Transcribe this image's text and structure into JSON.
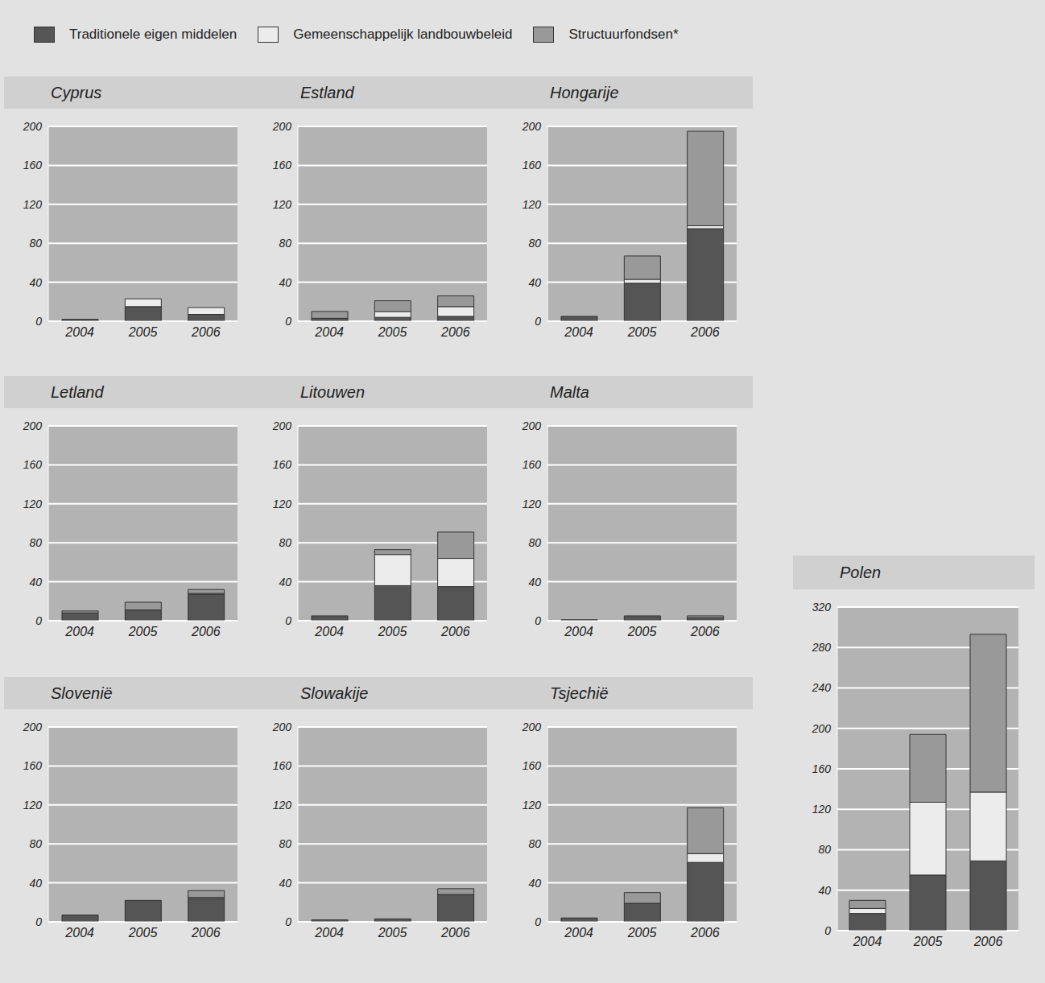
{
  "chart_data": [
    {
      "type": "bar",
      "title": "Cyprus",
      "categories": [
        "2004",
        "2005",
        "2006"
      ],
      "stacked": true,
      "grid": true,
      "legend": "top",
      "ylim": [
        0,
        200
      ],
      "yticks": [
        0,
        40,
        80,
        120,
        160,
        200
      ],
      "series": [
        {
          "name": "Traditionele eigen middelen",
          "color": "#555555",
          "values": [
            2,
            15,
            7
          ]
        },
        {
          "name": "Gemeenschappelijk landbouwbeleid",
          "color": "#ececec",
          "values": [
            0,
            8,
            7
          ]
        },
        {
          "name": "Structuurfondsen*",
          "color": "#999999",
          "values": [
            0,
            0,
            0
          ]
        }
      ]
    },
    {
      "type": "bar",
      "title": "Estland",
      "categories": [
        "2004",
        "2005",
        "2006"
      ],
      "stacked": true,
      "grid": true,
      "legend": "top",
      "ylim": [
        0,
        200
      ],
      "yticks": [
        0,
        40,
        80,
        120,
        160,
        200
      ],
      "series": [
        {
          "name": "Traditionele eigen middelen",
          "color": "#555555",
          "values": [
            3,
            4,
            5
          ]
        },
        {
          "name": "Gemeenschappelijk landbouwbeleid",
          "color": "#ececec",
          "values": [
            0,
            6,
            10
          ]
        },
        {
          "name": "Structuurfondsen*",
          "color": "#999999",
          "values": [
            7,
            11,
            11
          ]
        }
      ]
    },
    {
      "type": "bar",
      "title": "Hongarije",
      "categories": [
        "2004",
        "2005",
        "2006"
      ],
      "stacked": true,
      "grid": true,
      "legend": "top",
      "ylim": [
        0,
        200
      ],
      "yticks": [
        0,
        40,
        80,
        120,
        160,
        200
      ],
      "series": [
        {
          "name": "Traditionele eigen middelen",
          "color": "#555555",
          "values": [
            5,
            39,
            95
          ]
        },
        {
          "name": "Gemeenschappelijk landbouwbeleid",
          "color": "#ececec",
          "values": [
            0,
            4,
            3
          ]
        },
        {
          "name": "Structuurfondsen*",
          "color": "#999999",
          "values": [
            0,
            24,
            97
          ]
        }
      ]
    },
    {
      "type": "bar",
      "title": "Letland",
      "categories": [
        "2004",
        "2005",
        "2006"
      ],
      "stacked": true,
      "grid": true,
      "legend": "top",
      "ylim": [
        0,
        200
      ],
      "yticks": [
        0,
        40,
        80,
        120,
        160,
        200
      ],
      "series": [
        {
          "name": "Traditionele eigen middelen",
          "color": "#555555",
          "values": [
            8,
            11,
            27
          ]
        },
        {
          "name": "Gemeenschappelijk landbouwbeleid",
          "color": "#ececec",
          "values": [
            0,
            0,
            1
          ]
        },
        {
          "name": "Structuurfondsen*",
          "color": "#999999",
          "values": [
            2,
            8,
            4
          ]
        }
      ]
    },
    {
      "type": "bar",
      "title": "Litouwen",
      "categories": [
        "2004",
        "2005",
        "2006"
      ],
      "stacked": true,
      "grid": true,
      "legend": "top",
      "ylim": [
        0,
        200
      ],
      "yticks": [
        0,
        40,
        80,
        120,
        160,
        200
      ],
      "series": [
        {
          "name": "Traditionele eigen middelen",
          "color": "#555555",
          "values": [
            5,
            36,
            35
          ]
        },
        {
          "name": "Gemeenschappelijk landbouwbeleid",
          "color": "#ececec",
          "values": [
            0,
            32,
            29
          ]
        },
        {
          "name": "Structuurfondsen*",
          "color": "#999999",
          "values": [
            0,
            5,
            27
          ]
        }
      ]
    },
    {
      "type": "bar",
      "title": "Malta",
      "categories": [
        "2004",
        "2005",
        "2006"
      ],
      "stacked": true,
      "grid": true,
      "legend": "top",
      "ylim": [
        0,
        200
      ],
      "yticks": [
        0,
        40,
        80,
        120,
        160,
        200
      ],
      "series": [
        {
          "name": "Traditionele eigen middelen",
          "color": "#555555",
          "values": [
            1,
            5,
            3
          ]
        },
        {
          "name": "Gemeenschappelijk landbouwbeleid",
          "color": "#ececec",
          "values": [
            0,
            0,
            0
          ]
        },
        {
          "name": "Structuurfondsen*",
          "color": "#999999",
          "values": [
            0,
            0,
            2
          ]
        }
      ]
    },
    {
      "type": "bar",
      "title": "Slovenië",
      "categories": [
        "2004",
        "2005",
        "2006"
      ],
      "stacked": true,
      "grid": true,
      "legend": "top",
      "ylim": [
        0,
        200
      ],
      "yticks": [
        0,
        40,
        80,
        120,
        160,
        200
      ],
      "series": [
        {
          "name": "Traditionele eigen middelen",
          "color": "#555555",
          "values": [
            7,
            22,
            24
          ]
        },
        {
          "name": "Gemeenschappelijk landbouwbeleid",
          "color": "#ececec",
          "values": [
            0,
            0,
            1
          ]
        },
        {
          "name": "Structuurfondsen*",
          "color": "#999999",
          "values": [
            0,
            0,
            7
          ]
        }
      ]
    },
    {
      "type": "bar",
      "title": "Slowakije",
      "categories": [
        "2004",
        "2005",
        "2006"
      ],
      "stacked": true,
      "grid": true,
      "legend": "top",
      "ylim": [
        0,
        200
      ],
      "yticks": [
        0,
        40,
        80,
        120,
        160,
        200
      ],
      "series": [
        {
          "name": "Traditionele eigen middelen",
          "color": "#555555",
          "values": [
            2,
            3,
            28
          ]
        },
        {
          "name": "Gemeenschappelijk landbouwbeleid",
          "color": "#ececec",
          "values": [
            0,
            0,
            0
          ]
        },
        {
          "name": "Structuurfondsen*",
          "color": "#999999",
          "values": [
            0,
            0,
            6
          ]
        }
      ]
    },
    {
      "type": "bar",
      "title": "Tsjechië",
      "categories": [
        "2004",
        "2005",
        "2006"
      ],
      "stacked": true,
      "grid": true,
      "legend": "top",
      "ylim": [
        0,
        200
      ],
      "yticks": [
        0,
        40,
        80,
        120,
        160,
        200
      ],
      "series": [
        {
          "name": "Traditionele eigen middelen",
          "color": "#555555",
          "values": [
            4,
            19,
            61
          ]
        },
        {
          "name": "Gemeenschappelijk landbouwbeleid",
          "color": "#ececec",
          "values": [
            0,
            0,
            9
          ]
        },
        {
          "name": "Structuurfondsen*",
          "color": "#999999",
          "values": [
            0,
            11,
            47
          ]
        }
      ]
    },
    {
      "type": "bar",
      "title": "Polen",
      "categories": [
        "2004",
        "2005",
        "2006"
      ],
      "stacked": true,
      "grid": true,
      "legend": "top",
      "ylim": [
        0,
        320
      ],
      "yticks": [
        0,
        40,
        80,
        120,
        160,
        200,
        240,
        280,
        320
      ],
      "series": [
        {
          "name": "Traditionele eigen middelen",
          "color": "#555555",
          "values": [
            17,
            55,
            69
          ]
        },
        {
          "name": "Gemeenschappelijk landbouwbeleid",
          "color": "#ececec",
          "values": [
            5,
            72,
            68
          ]
        },
        {
          "name": "Structuurfondsen*",
          "color": "#999999",
          "values": [
            8,
            67,
            156
          ]
        }
      ]
    }
  ]
}
